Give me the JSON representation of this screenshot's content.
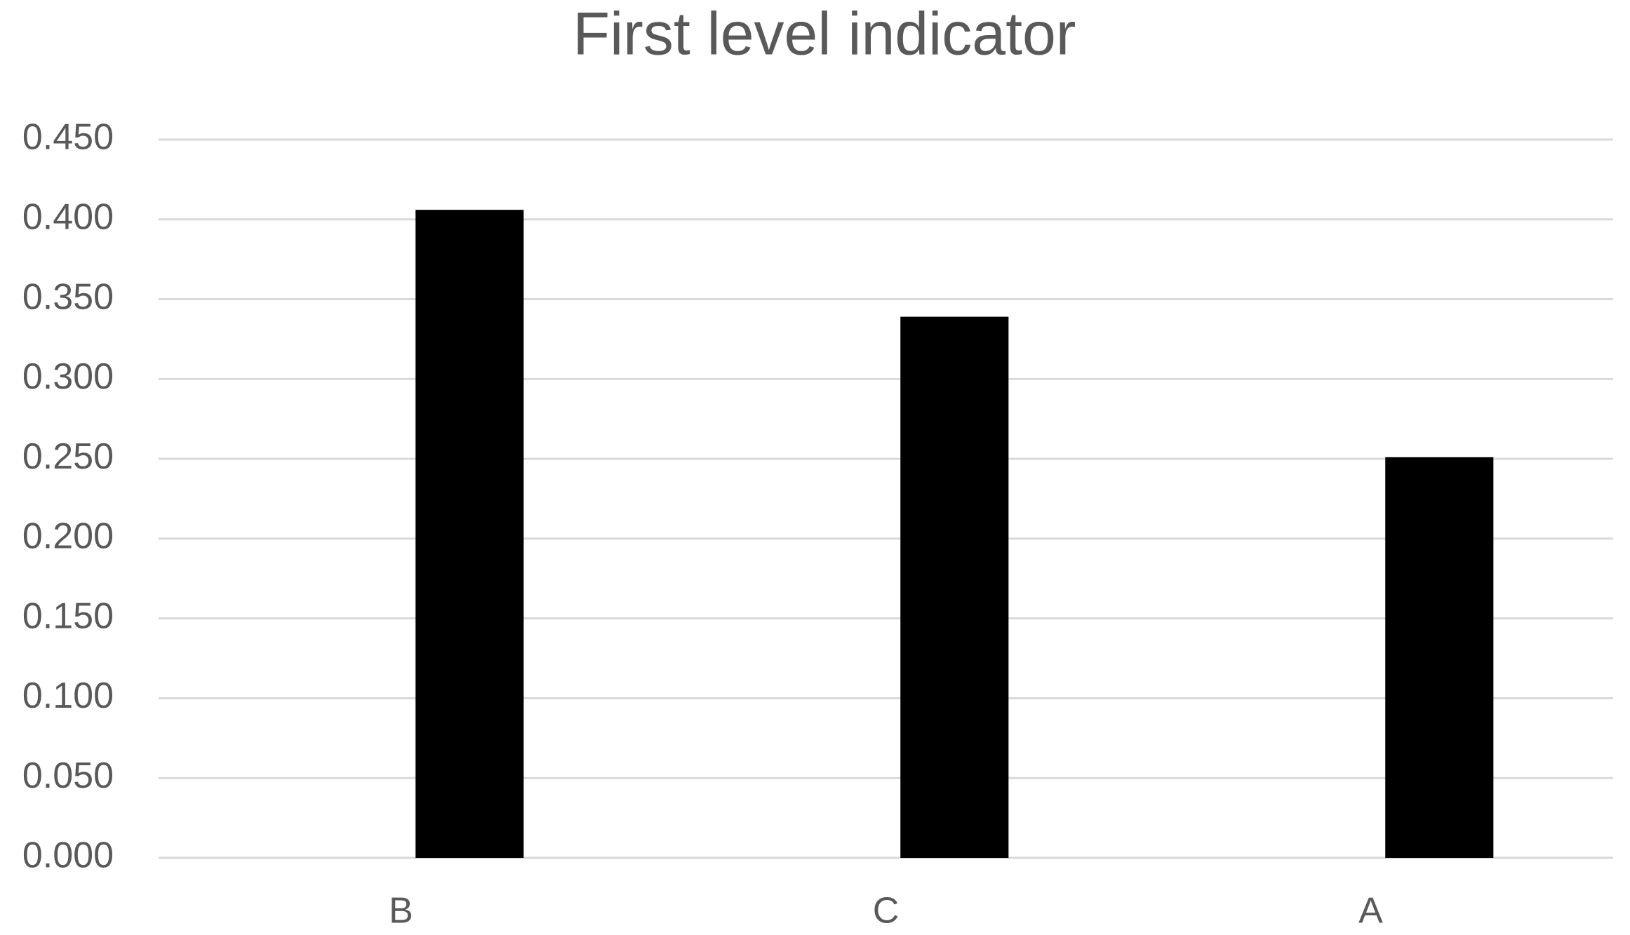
{
  "chart_data": {
    "type": "bar",
    "title": "First level indicator",
    "categories": [
      "B",
      "C",
      "A"
    ],
    "values": [
      0.406,
      0.339,
      0.251
    ],
    "color": "#000000",
    "ylim": [
      0,
      0.45
    ],
    "yticks": [
      {
        "value": 0,
        "label": "0.000"
      },
      {
        "value": 0.05,
        "label": "0.050"
      },
      {
        "value": 0.1,
        "label": "0.100"
      },
      {
        "value": 0.15,
        "label": "0.150"
      },
      {
        "value": 0.2,
        "label": "0.200"
      },
      {
        "value": 0.25,
        "label": "0.250"
      },
      {
        "value": 0.3,
        "label": "0.300"
      },
      {
        "value": 0.35,
        "label": "0.350"
      },
      {
        "value": 0.4,
        "label": "0.400"
      },
      {
        "value": 0.45,
        "label": "0.450"
      }
    ],
    "grid": true
  }
}
